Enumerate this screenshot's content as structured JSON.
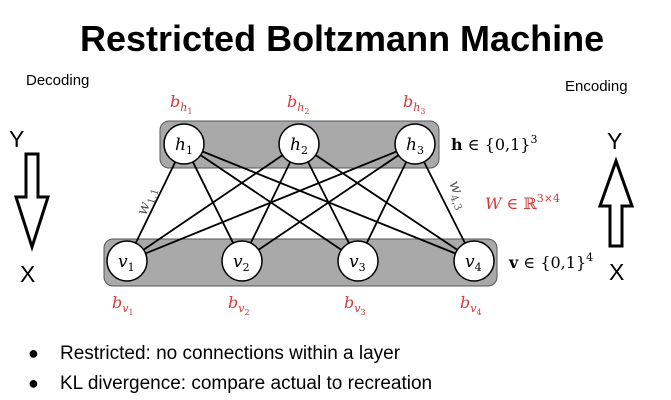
{
  "title": "Restricted Boltzmann Machine",
  "decoding_label": "Decoding",
  "encoding_label": "Encoding",
  "left_arrow": {
    "top": "Y",
    "bottom": "X",
    "direction": "down"
  },
  "right_arrow": {
    "top": "Y",
    "bottom": "X",
    "direction": "up"
  },
  "hidden_nodes": [
    {
      "var": "h",
      "sub": "1",
      "bias_var": "b",
      "bias_sub": "h",
      "bias_subsub": "1"
    },
    {
      "var": "h",
      "sub": "2",
      "bias_var": "b",
      "bias_sub": "h",
      "bias_subsub": "2"
    },
    {
      "var": "h",
      "sub": "3",
      "bias_var": "b",
      "bias_sub": "h",
      "bias_subsub": "3"
    }
  ],
  "visible_nodes": [
    {
      "var": "v",
      "sub": "1",
      "bias_var": "b",
      "bias_sub": "v",
      "bias_subsub": "1"
    },
    {
      "var": "v",
      "sub": "2",
      "bias_var": "b",
      "bias_sub": "v",
      "bias_subsub": "2"
    },
    {
      "var": "v",
      "sub": "3",
      "bias_var": "b",
      "bias_sub": "v",
      "bias_subsub": "3"
    },
    {
      "var": "v",
      "sub": "4",
      "bias_var": "b",
      "bias_sub": "v",
      "bias_subsub": "4"
    }
  ],
  "hidden_layer_label": {
    "bold": "h",
    "rest": " ∈ {0,1}",
    "sup": "3"
  },
  "visible_layer_label": {
    "bold": "v",
    "rest": " ∈ {0,1}",
    "sup": "4"
  },
  "weight_matrix_label": {
    "var": "W",
    "rest": " ∈ ℝ",
    "sup": "3×4"
  },
  "edge_labels": {
    "w11": {
      "var": "w",
      "sub": "1,1"
    },
    "w43": {
      "var": "w",
      "sub": "4,3"
    }
  },
  "bullets": [
    "Restricted: no connections within a layer",
    "KL divergence: compare actual to recreation"
  ],
  "colors": {
    "accent_red": "#d23a3a",
    "layer_box": "#a9a9a9",
    "node_fill": "#ffffff"
  }
}
